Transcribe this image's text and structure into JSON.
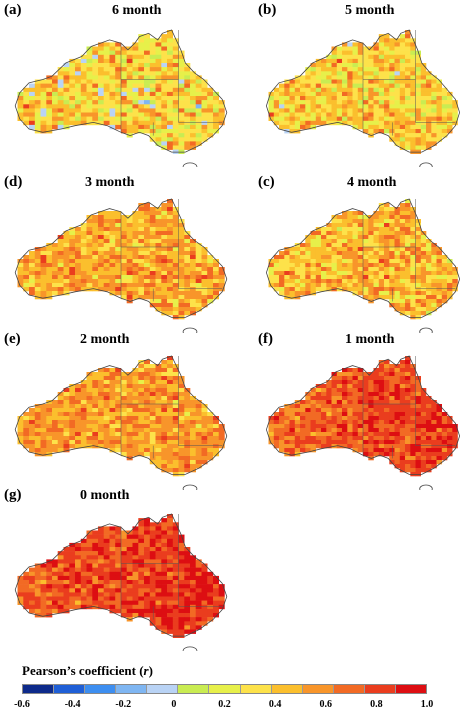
{
  "panels": [
    {
      "letter": "(a)",
      "title": "6 month",
      "lag": 6
    },
    {
      "letter": "(b)",
      "title": "5 month",
      "lag": 5
    },
    {
      "letter": "(d)",
      "title": "3 month",
      "lag": 3
    },
    {
      "letter": "(c)",
      "title": "4 month",
      "lag": 4
    },
    {
      "letter": "(e)",
      "title": "2 month",
      "lag": 2
    },
    {
      "letter": "(f)",
      "title": "1 month",
      "lag": 1
    },
    {
      "letter": "(g)",
      "title": "0 month",
      "lag": 0
    }
  ],
  "legend": {
    "title_main": "Pearson’s coefficient (",
    "title_var": "r",
    "title_end": ")",
    "colors": [
      "#0d2a8a",
      "#1f5fd6",
      "#3d8ef0",
      "#7fb6f2",
      "#b9d3f5",
      "#c9ec52",
      "#e7f04a",
      "#fde24a",
      "#fbbf2d",
      "#f8952a",
      "#f26a24",
      "#ea3d1e",
      "#dd0e12"
    ],
    "ticks": [
      "-0.6",
      "-0.4",
      "-0.2",
      "0",
      "0.2",
      "0.4",
      "0.6",
      "0.8",
      "1.0"
    ],
    "range": [
      -0.6,
      1.0
    ]
  }
}
